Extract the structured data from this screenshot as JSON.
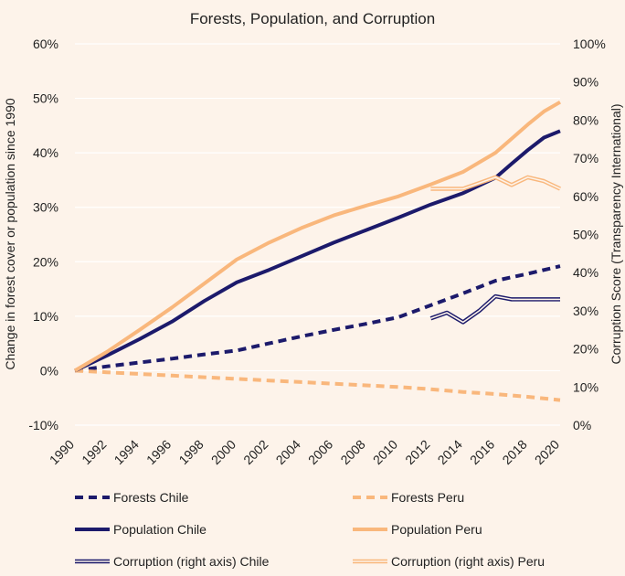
{
  "chart_data": {
    "type": "line",
    "title": "Forests, Population, and Corruption",
    "ylabel_left": "Change in forest cover or population since 1990",
    "ylabel_right": "Corruption Score (Transparency International)",
    "ylim_left": [
      -10,
      60
    ],
    "ylim_right": [
      0,
      100
    ],
    "xlim": [
      1990,
      2020
    ],
    "x_ticks": [
      "1990",
      "1992",
      "1994",
      "1996",
      "1998",
      "2000",
      "2002",
      "2004",
      "2006",
      "2008",
      "2010",
      "2012",
      "2014",
      "2016",
      "2018",
      "2020"
    ],
    "y_ticks_left": [
      "-10%",
      "0%",
      "10%",
      "20%",
      "30%",
      "40%",
      "50%",
      "60%"
    ],
    "y_ticks_right": [
      "0%",
      "10%",
      "20%",
      "30%",
      "40%",
      "50%",
      "60%",
      "70%",
      "80%",
      "90%",
      "100%"
    ],
    "colors": {
      "chile": "#1c1a6b",
      "peru": "#f9b77c",
      "background": "#fdf3ea",
      "grid": "#ffffff"
    },
    "series": [
      {
        "name": "Forests Chile",
        "country": "chile",
        "style": "dashed",
        "axis": "left",
        "x": [
          1990,
          1992,
          1994,
          1996,
          1998,
          2000,
          2002,
          2004,
          2006,
          2008,
          2010,
          2012,
          2014,
          2016,
          2018,
          2020
        ],
        "values": [
          0,
          0.8,
          1.5,
          2.2,
          3.0,
          3.7,
          5.0,
          6.3,
          7.5,
          8.6,
          9.8,
          12.0,
          14.2,
          16.5,
          17.8,
          19.2
        ]
      },
      {
        "name": "Forests Peru",
        "country": "peru",
        "style": "dashed",
        "axis": "left",
        "x": [
          1990,
          1992,
          1994,
          1996,
          1998,
          2000,
          2002,
          2004,
          2006,
          2008,
          2010,
          2012,
          2014,
          2016,
          2018,
          2020
        ],
        "values": [
          0,
          -0.3,
          -0.6,
          -0.9,
          -1.2,
          -1.5,
          -1.8,
          -2.1,
          -2.4,
          -2.7,
          -3.0,
          -3.4,
          -3.9,
          -4.3,
          -4.8,
          -5.4
        ]
      },
      {
        "name": "Population Chile",
        "country": "chile",
        "style": "solid",
        "axis": "left",
        "x": [
          1990,
          1992,
          1994,
          1996,
          1998,
          2000,
          2002,
          2004,
          2006,
          2008,
          2010,
          2012,
          2014,
          2016,
          2017,
          2018,
          2019,
          2020
        ],
        "values": [
          0,
          2.8,
          5.8,
          9.0,
          12.8,
          16.2,
          18.5,
          21.0,
          23.5,
          25.8,
          28.1,
          30.5,
          32.6,
          35.4,
          38.0,
          40.5,
          42.8,
          44.0
        ]
      },
      {
        "name": "Population Peru",
        "country": "peru",
        "style": "solid",
        "axis": "left",
        "x": [
          1990,
          1992,
          1994,
          1996,
          1998,
          2000,
          2002,
          2004,
          2006,
          2008,
          2010,
          2012,
          2014,
          2016,
          2017,
          2018,
          2019,
          2020
        ],
        "values": [
          0,
          3.5,
          7.5,
          11.6,
          16.0,
          20.4,
          23.5,
          26.2,
          28.5,
          30.3,
          32.0,
          34.2,
          36.5,
          40.0,
          42.6,
          45.2,
          47.6,
          49.3
        ]
      },
      {
        "name": "Corruption (right axis) Chile",
        "country": "chile",
        "style": "double",
        "axis": "right",
        "x": [
          2012,
          2013,
          2014,
          2015,
          2016,
          2017,
          2018,
          2019,
          2020
        ],
        "values": [
          28,
          29.5,
          27,
          30,
          33.8,
          33,
          33,
          33,
          33
        ]
      },
      {
        "name": "Corruption (right axis) Peru",
        "country": "peru",
        "style": "double",
        "axis": "right",
        "x": [
          2012,
          2013,
          2014,
          2015,
          2016,
          2017,
          2018,
          2019,
          2020
        ],
        "values": [
          62,
          62,
          62,
          63.5,
          65,
          63,
          65,
          64,
          62
        ]
      }
    ],
    "legend": [
      {
        "label": "Forests Chile",
        "series": 0
      },
      {
        "label": "Forests Peru",
        "series": 1
      },
      {
        "label": "Population Chile",
        "series": 2
      },
      {
        "label": "Population Peru",
        "series": 3
      },
      {
        "label": "Corruption (right axis) Chile",
        "series": 4
      },
      {
        "label": "Corruption (right axis) Peru",
        "series": 5
      }
    ],
    "legend_position": "bottom"
  }
}
